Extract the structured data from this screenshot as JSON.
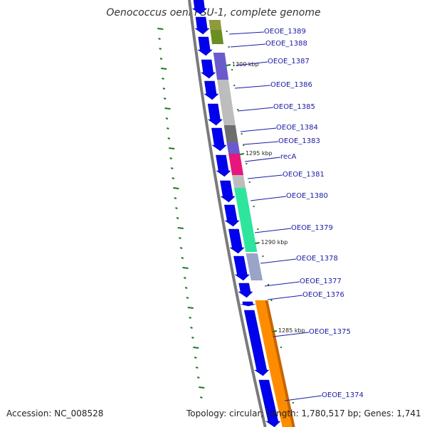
{
  "title": "Oenococcus oeni PSU-1, complete genome",
  "footer": {
    "accession": "Accession: NC_008528",
    "summary": "Topology: circular; Length: 1,780,517 bp; Genes: 1,741"
  },
  "tick_labels": [
    {
      "label": "1300 kbp",
      "position_kbp": 1300
    },
    {
      "label": "1295 kbp",
      "position_kbp": 1295
    },
    {
      "label": "1290 kbp",
      "position_kbp": 1290
    },
    {
      "label": "1285 kbp",
      "position_kbp": 1285
    }
  ],
  "genes": [
    {
      "name": "OEOE_1389",
      "color": "#8f9a3c"
    },
    {
      "name": "OEOE_1388",
      "color": "#6b8e23"
    },
    {
      "name": "OEOE_1387",
      "color": "#6a5acd"
    },
    {
      "name": "OEOE_1386",
      "color": "#bdbdbd"
    },
    {
      "name": "OEOE_1385",
      "color": "#bdbdbd"
    },
    {
      "name": "OEOE_1384",
      "color": "#6e6e6e"
    },
    {
      "name": "OEOE_1383",
      "color": "#6a5acd"
    },
    {
      "name": "recA",
      "color": "#e6167e"
    },
    {
      "name": "OEOE_1381",
      "color": "#bdbdbd"
    },
    {
      "name": "OEOE_1380",
      "color": "#2ee59d"
    },
    {
      "name": "OEOE_1379",
      "color": "#2ee59d"
    },
    {
      "name": "OEOE_1378",
      "color": "#20b2c8"
    },
    {
      "name": "OEOE_1377",
      "color": "#9aa4c8"
    },
    {
      "name": "OEOE_1376",
      "color": "#ff8c00"
    },
    {
      "name": "OEOE_1375",
      "color": "#ff8c00"
    },
    {
      "name": "OEOE_1374",
      "color": "#ff8c00"
    }
  ],
  "colors": {
    "backbone": "#7a7a7a",
    "cds_blue": "#0000ee",
    "tick_green": "#1a7a1a",
    "label_blue": "#1a1aa6"
  }
}
